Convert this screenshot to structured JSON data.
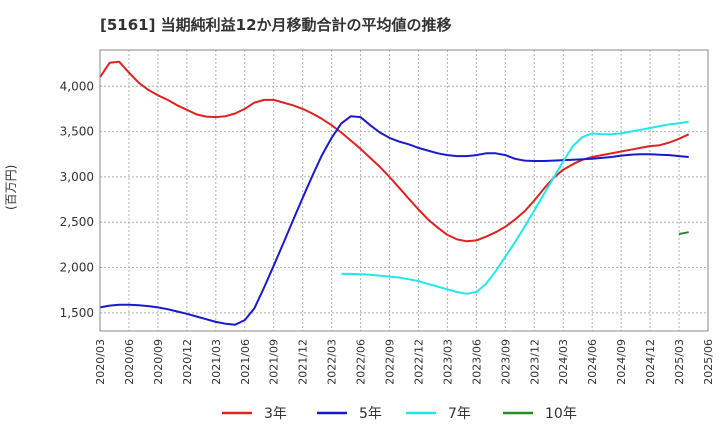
{
  "title": "[5161]  当期純利益12か月移動合計の平均値の推移",
  "y_unit": "(百万円)",
  "chart_data": {
    "type": "line",
    "title": "[5161]  当期純利益12か月移動合計の平均値の推移",
    "ylabel": "(百万円)",
    "xlabel": "",
    "ylim": [
      1300,
      4400
    ],
    "yticks": [
      1500,
      2000,
      2500,
      3000,
      3500,
      4000
    ],
    "ytick_labels": [
      "1,500",
      "2,000",
      "2,500",
      "3,000",
      "3,500",
      "4,000"
    ],
    "xticks": [
      "2020/03",
      "2020/06",
      "2020/09",
      "2020/12",
      "2021/03",
      "2021/06",
      "2021/09",
      "2021/12",
      "2022/03",
      "2022/06",
      "2022/09",
      "2022/12",
      "2023/03",
      "2023/06",
      "2023/09",
      "2023/12",
      "2024/03",
      "2024/06",
      "2024/09",
      "2024/12",
      "2025/03",
      "2025/06"
    ],
    "grid": true,
    "legend_position": "bottom",
    "series": [
      {
        "name": "3年",
        "color": "#dd2222",
        "points": [
          [
            "2020/03",
            4100
          ],
          [
            "2020/04",
            4260
          ],
          [
            "2020/05",
            4270
          ],
          [
            "2020/06",
            4150
          ],
          [
            "2020/07",
            4040
          ],
          [
            "2020/08",
            3960
          ],
          [
            "2020/09",
            3900
          ],
          [
            "2020/10",
            3850
          ],
          [
            "2020/11",
            3790
          ],
          [
            "2020/12",
            3740
          ],
          [
            "2021/01",
            3690
          ],
          [
            "2021/02",
            3665
          ],
          [
            "2021/03",
            3660
          ],
          [
            "2021/04",
            3670
          ],
          [
            "2021/05",
            3700
          ],
          [
            "2021/06",
            3750
          ],
          [
            "2021/07",
            3820
          ],
          [
            "2021/08",
            3850
          ],
          [
            "2021/09",
            3850
          ],
          [
            "2021/10",
            3820
          ],
          [
            "2021/11",
            3790
          ],
          [
            "2021/12",
            3750
          ],
          [
            "2022/01",
            3700
          ],
          [
            "2022/02",
            3640
          ],
          [
            "2022/03",
            3570
          ],
          [
            "2022/04",
            3490
          ],
          [
            "2022/05",
            3400
          ],
          [
            "2022/06",
            3310
          ],
          [
            "2022/07",
            3210
          ],
          [
            "2022/08",
            3110
          ],
          [
            "2022/09",
            3000
          ],
          [
            "2022/10",
            2880
          ],
          [
            "2022/11",
            2760
          ],
          [
            "2022/12",
            2640
          ],
          [
            "2023/01",
            2530
          ],
          [
            "2023/02",
            2440
          ],
          [
            "2023/03",
            2360
          ],
          [
            "2023/04",
            2310
          ],
          [
            "2023/05",
            2290
          ],
          [
            "2023/06",
            2300
          ],
          [
            "2023/07",
            2340
          ],
          [
            "2023/08",
            2390
          ],
          [
            "2023/09",
            2450
          ],
          [
            "2023/10",
            2530
          ],
          [
            "2023/11",
            2620
          ],
          [
            "2023/12",
            2740
          ],
          [
            "2024/01",
            2870
          ],
          [
            "2024/02",
            2990
          ],
          [
            "2024/03",
            3080
          ],
          [
            "2024/04",
            3140
          ],
          [
            "2024/05",
            3190
          ],
          [
            "2024/06",
            3220
          ],
          [
            "2024/07",
            3240
          ],
          [
            "2024/08",
            3260
          ],
          [
            "2024/09",
            3280
          ],
          [
            "2024/10",
            3300
          ],
          [
            "2024/11",
            3320
          ],
          [
            "2024/12",
            3340
          ],
          [
            "2025/01",
            3350
          ],
          [
            "2025/02",
            3380
          ],
          [
            "2025/03",
            3420
          ],
          [
            "2025/04",
            3470
          ]
        ]
      },
      {
        "name": "5年",
        "color": "#1a1acc",
        "points": [
          [
            "2020/03",
            1560
          ],
          [
            "2020/04",
            1580
          ],
          [
            "2020/05",
            1590
          ],
          [
            "2020/06",
            1590
          ],
          [
            "2020/07",
            1585
          ],
          [
            "2020/08",
            1575
          ],
          [
            "2020/09",
            1560
          ],
          [
            "2020/10",
            1540
          ],
          [
            "2020/11",
            1515
          ],
          [
            "2020/12",
            1490
          ],
          [
            "2021/01",
            1460
          ],
          [
            "2021/02",
            1430
          ],
          [
            "2021/03",
            1400
          ],
          [
            "2021/04",
            1380
          ],
          [
            "2021/05",
            1370
          ],
          [
            "2021/06",
            1420
          ],
          [
            "2021/07",
            1550
          ],
          [
            "2021/08",
            1780
          ],
          [
            "2021/09",
            2020
          ],
          [
            "2021/10",
            2270
          ],
          [
            "2021/11",
            2520
          ],
          [
            "2021/12",
            2770
          ],
          [
            "2022/01",
            3010
          ],
          [
            "2022/02",
            3240
          ],
          [
            "2022/03",
            3430
          ],
          [
            "2022/04",
            3590
          ],
          [
            "2022/05",
            3670
          ],
          [
            "2022/06",
            3660
          ],
          [
            "2022/07",
            3570
          ],
          [
            "2022/08",
            3490
          ],
          [
            "2022/09",
            3430
          ],
          [
            "2022/10",
            3390
          ],
          [
            "2022/11",
            3360
          ],
          [
            "2022/12",
            3320
          ],
          [
            "2023/01",
            3290
          ],
          [
            "2023/02",
            3260
          ],
          [
            "2023/03",
            3240
          ],
          [
            "2023/04",
            3230
          ],
          [
            "2023/05",
            3230
          ],
          [
            "2023/06",
            3240
          ],
          [
            "2023/07",
            3260
          ],
          [
            "2023/08",
            3260
          ],
          [
            "2023/09",
            3240
          ],
          [
            "2023/10",
            3200
          ],
          [
            "2023/11",
            3180
          ],
          [
            "2023/12",
            3175
          ],
          [
            "2024/01",
            3175
          ],
          [
            "2024/02",
            3180
          ],
          [
            "2024/03",
            3185
          ],
          [
            "2024/04",
            3190
          ],
          [
            "2024/05",
            3195
          ],
          [
            "2024/06",
            3200
          ],
          [
            "2024/07",
            3210
          ],
          [
            "2024/08",
            3220
          ],
          [
            "2024/09",
            3235
          ],
          [
            "2024/10",
            3245
          ],
          [
            "2024/11",
            3250
          ],
          [
            "2024/12",
            3250
          ],
          [
            "2025/01",
            3245
          ],
          [
            "2025/02",
            3240
          ],
          [
            "2025/03",
            3230
          ],
          [
            "2025/04",
            3220
          ]
        ]
      },
      {
        "name": "7年",
        "color": "#22e8ee",
        "points": [
          [
            "2022/04",
            1930
          ],
          [
            "2022/05",
            1930
          ],
          [
            "2022/06",
            1925
          ],
          [
            "2022/07",
            1920
          ],
          [
            "2022/08",
            1910
          ],
          [
            "2022/09",
            1900
          ],
          [
            "2022/10",
            1890
          ],
          [
            "2022/11",
            1870
          ],
          [
            "2022/12",
            1850
          ],
          [
            "2023/01",
            1820
          ],
          [
            "2023/02",
            1790
          ],
          [
            "2023/03",
            1760
          ],
          [
            "2023/04",
            1730
          ],
          [
            "2023/05",
            1710
          ],
          [
            "2023/06",
            1730
          ],
          [
            "2023/07",
            1820
          ],
          [
            "2023/08",
            1960
          ],
          [
            "2023/09",
            2120
          ],
          [
            "2023/10",
            2280
          ],
          [
            "2023/11",
            2450
          ],
          [
            "2023/12",
            2630
          ],
          [
            "2024/01",
            2810
          ],
          [
            "2024/02",
            2990
          ],
          [
            "2024/03",
            3170
          ],
          [
            "2024/04",
            3340
          ],
          [
            "2024/05",
            3440
          ],
          [
            "2024/06",
            3480
          ],
          [
            "2024/07",
            3470
          ],
          [
            "2024/08",
            3470
          ],
          [
            "2024/09",
            3480
          ],
          [
            "2024/10",
            3500
          ],
          [
            "2024/11",
            3520
          ],
          [
            "2024/12",
            3540
          ],
          [
            "2025/01",
            3560
          ],
          [
            "2025/02",
            3580
          ],
          [
            "2025/03",
            3590
          ],
          [
            "2025/04",
            3610
          ]
        ]
      },
      {
        "name": "10年",
        "color": "#2a8a2a",
        "points": [
          [
            "2025/03",
            2370
          ],
          [
            "2025/04",
            2390
          ]
        ]
      }
    ]
  }
}
